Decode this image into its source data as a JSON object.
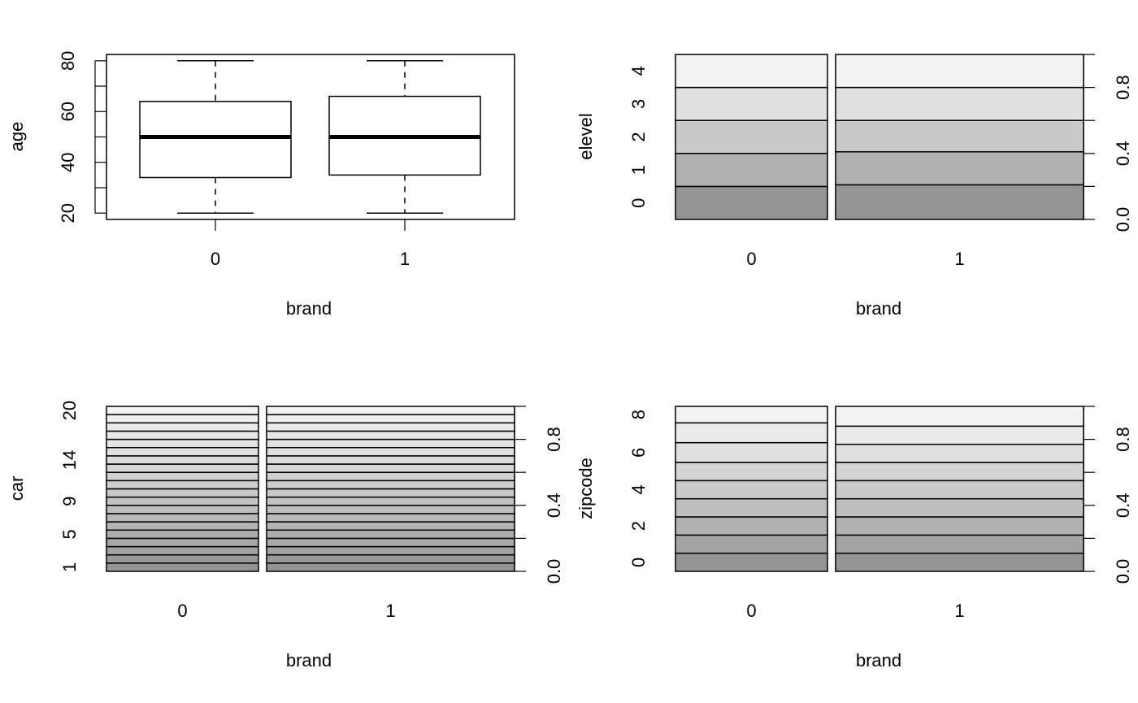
{
  "chart_data": [
    {
      "type": "box",
      "xlabel": "brand",
      "ylabel": "age",
      "categories": [
        "0",
        "1"
      ],
      "ylim": [
        17.5,
        82.5
      ],
      "yticks": [
        "20",
        "40",
        "60",
        "80"
      ],
      "box_stats": [
        {
          "category": "0",
          "min": 20,
          "q1": 34,
          "median": 50,
          "q3": 64,
          "max": 80
        },
        {
          "category": "1",
          "min": 20,
          "q1": 35,
          "median": 50,
          "q3": 66,
          "max": 80
        }
      ]
    },
    {
      "type": "spineplot",
      "xlabel": "brand",
      "ylabel": "elevel",
      "categories": [
        "0",
        "1"
      ],
      "category_widths": [
        0.38,
        0.62
      ],
      "levels": [
        "0",
        "1",
        "2",
        "3",
        "4"
      ],
      "level_ticks": [
        "0",
        "1",
        "2",
        "3",
        "4"
      ],
      "right_ticks": [
        "0.0",
        "0.4",
        "0.8"
      ],
      "cumulative": [
        [
          0.2,
          0.4,
          0.6,
          0.8,
          1.0
        ],
        [
          0.21,
          0.41,
          0.6,
          0.8,
          1.0
        ]
      ]
    },
    {
      "type": "spineplot",
      "xlabel": "brand",
      "ylabel": "car",
      "categories": [
        "0",
        "1"
      ],
      "category_widths": [
        0.38,
        0.62
      ],
      "levels": [
        "1",
        "2",
        "3",
        "4",
        "5",
        "6",
        "7",
        "8",
        "9",
        "10",
        "11",
        "12",
        "13",
        "14",
        "15",
        "16",
        "17",
        "18",
        "19",
        "20"
      ],
      "level_ticks": [
        "1",
        "5",
        "9",
        "14",
        "20"
      ],
      "right_ticks": [
        "0.0",
        "0.4",
        "0.8"
      ],
      "cumulative": [
        [
          0.05,
          0.1,
          0.15,
          0.2,
          0.25,
          0.3,
          0.35,
          0.4,
          0.45,
          0.5,
          0.55,
          0.6,
          0.65,
          0.7,
          0.75,
          0.8,
          0.85,
          0.9,
          0.95,
          1.0
        ],
        [
          0.05,
          0.1,
          0.15,
          0.2,
          0.25,
          0.3,
          0.35,
          0.4,
          0.45,
          0.5,
          0.55,
          0.6,
          0.65,
          0.7,
          0.75,
          0.8,
          0.85,
          0.9,
          0.95,
          1.0
        ]
      ]
    },
    {
      "type": "spineplot",
      "xlabel": "brand",
      "ylabel": "zipcode",
      "categories": [
        "0",
        "1"
      ],
      "category_widths": [
        0.38,
        0.62
      ],
      "levels": [
        "0",
        "1",
        "2",
        "3",
        "4",
        "5",
        "6",
        "7",
        "8"
      ],
      "level_ticks": [
        "0",
        "2",
        "4",
        "6",
        "8"
      ],
      "right_ticks": [
        "0.0",
        "0.4",
        "0.8"
      ],
      "cumulative": [
        [
          0.11,
          0.22,
          0.33,
          0.44,
          0.55,
          0.66,
          0.78,
          0.9,
          1.0
        ],
        [
          0.11,
          0.22,
          0.33,
          0.44,
          0.55,
          0.66,
          0.77,
          0.88,
          1.0
        ]
      ]
    }
  ]
}
